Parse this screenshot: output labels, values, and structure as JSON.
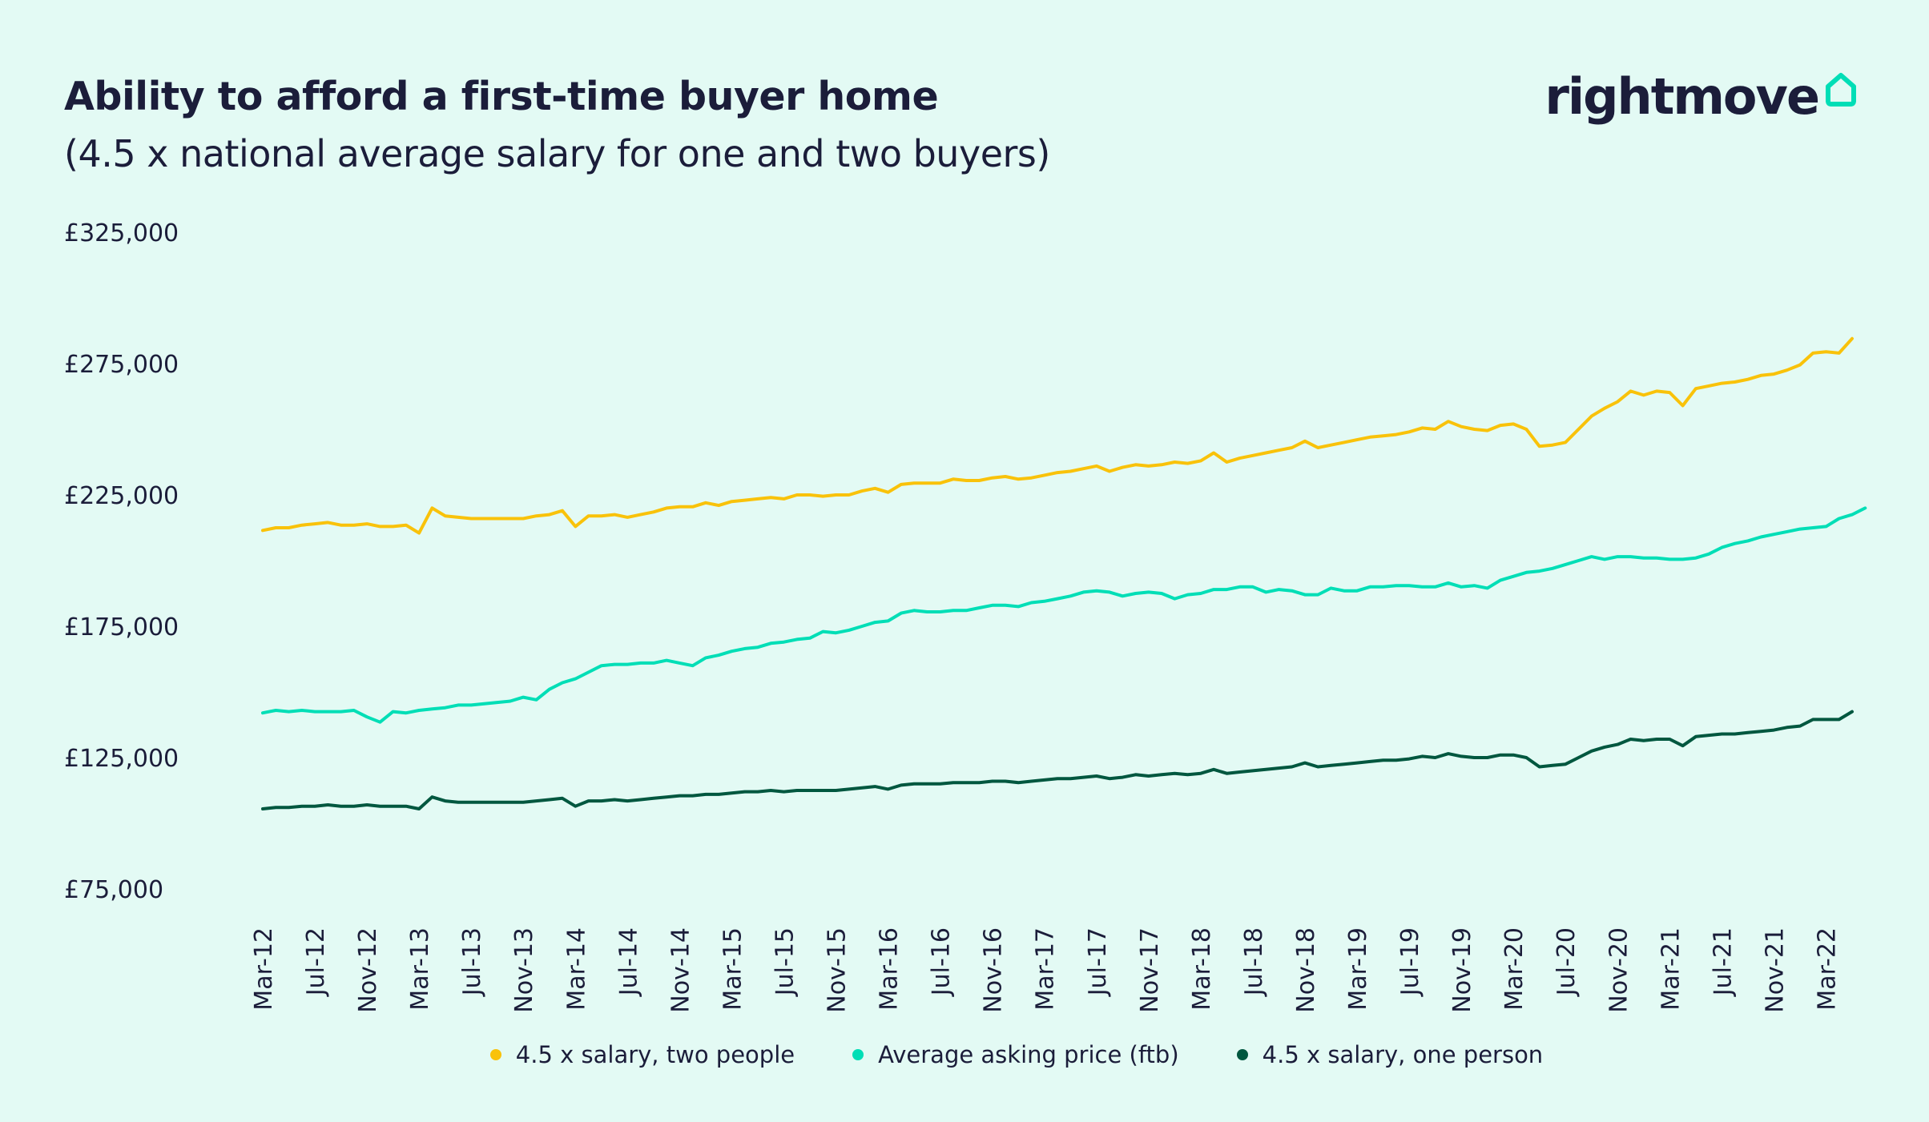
{
  "header": {
    "title": "Ability to afford a first-time buyer home",
    "subtitle": "(4.5 x national average salary for one and two buyers)"
  },
  "brand": {
    "logo_text": "rightmove",
    "logo_icon": "house-icon",
    "accent_color": "#00deb6"
  },
  "chart_data": {
    "type": "line",
    "title": "Ability to afford a first-time buyer home",
    "subtitle": "(4.5 x national average salary for one and two buyers)",
    "xlabel": "",
    "ylabel": "",
    "ylim": [
      75000,
      325000
    ],
    "yticks": [
      75000,
      125000,
      175000,
      225000,
      275000,
      325000
    ],
    "ytick_labels": [
      "£75,000",
      "£125,000",
      "£175,000",
      "£225,000",
      "£275,000",
      "£325,000"
    ],
    "grid": false,
    "legend_position": "bottom",
    "x_tick_labels": [
      "Mar-12",
      "Jul-12",
      "Nov-12",
      "Mar-13",
      "Jul-13",
      "Nov-13",
      "Mar-14",
      "Jul-14",
      "Nov-14",
      "Mar-15",
      "Jul-15",
      "Nov-15",
      "Mar-16",
      "Jul-16",
      "Nov-16",
      "Mar-17",
      "Jul-17",
      "Nov-17",
      "Mar-18",
      "Jul-18",
      "Nov-18",
      "Mar-19",
      "Jul-19",
      "Nov-19",
      "Mar-20",
      "Jul-20",
      "Nov-20",
      "Mar-21",
      "Jul-21",
      "Nov-21",
      "Mar-22"
    ],
    "x_tick_step_months": 4,
    "series": [
      {
        "name": "4.5 x salary, two people",
        "color": "#f9c20a",
        "values": [
          211500,
          212500,
          212500,
          213500,
          214000,
          214500,
          213500,
          213500,
          214000,
          213000,
          213000,
          213500,
          210500,
          220000,
          217000,
          216500,
          216000,
          216000,
          216000,
          216000,
          216000,
          217000,
          217500,
          219000,
          213000,
          217000,
          217000,
          217500,
          216500,
          217500,
          218500,
          220000,
          220500,
          220500,
          222000,
          221000,
          222500,
          223000,
          223500,
          224000,
          223500,
          225000,
          225000,
          224500,
          225000,
          225000,
          226500,
          227500,
          226000,
          229000,
          229500,
          229500,
          229500,
          231000,
          230500,
          230500,
          231500,
          232000,
          231000,
          231500,
          232500,
          233500,
          234000,
          235000,
          236000,
          234000,
          235500,
          236500,
          236000,
          236500,
          237500,
          237000,
          238000,
          241000,
          237500,
          239000,
          240000,
          241000,
          242000,
          243000,
          245500,
          243000,
          244000,
          245000,
          246000,
          247000,
          247500,
          248000,
          249000,
          250500,
          250000,
          253000,
          251000,
          250000,
          249500,
          251500,
          252000,
          250000,
          243500,
          244000,
          245000,
          250000,
          255000,
          258000,
          260500,
          264500,
          263000,
          264500,
          264000,
          259000,
          265500,
          266500,
          267500,
          268000,
          269000,
          270500,
          271000,
          272500,
          274500,
          279000,
          279500,
          279000,
          284500
        ]
      },
      {
        "name": "Average asking price (ftb)",
        "color": "#00deb6",
        "values": [
          142000,
          143000,
          142500,
          143000,
          142500,
          142500,
          142500,
          143000,
          140500,
          138500,
          142500,
          142000,
          143000,
          143500,
          144000,
          145000,
          145000,
          145500,
          146000,
          146500,
          148000,
          147000,
          151000,
          153500,
          155000,
          157500,
          160000,
          160500,
          160500,
          161000,
          161000,
          162000,
          161000,
          160000,
          163000,
          164000,
          165500,
          166500,
          167000,
          168500,
          169000,
          170000,
          170500,
          173000,
          172500,
          173500,
          175000,
          176500,
          177000,
          180000,
          181000,
          180500,
          180500,
          181000,
          181000,
          182000,
          183000,
          183000,
          182500,
          184000,
          184500,
          185500,
          186500,
          188000,
          188500,
          188000,
          186500,
          187500,
          188000,
          187500,
          185500,
          187000,
          187500,
          189000,
          189000,
          190000,
          190000,
          188000,
          189000,
          188500,
          187000,
          187000,
          189500,
          188500,
          188500,
          190000,
          190000,
          190500,
          190500,
          190000,
          190000,
          191500,
          190000,
          190500,
          189500,
          192500,
          194000,
          195500,
          196000,
          197000,
          198500,
          200000,
          201500,
          200500,
          201500,
          201500,
          201000,
          201000,
          200500,
          200500,
          201000,
          202500,
          205000,
          206500,
          207500,
          209000,
          210000,
          211000,
          212000,
          212500,
          213000,
          216000,
          217500,
          220000
        ]
      },
      {
        "name": "4.5 x salary, one person",
        "color": "#00573f",
        "values": [
          105500,
          106000,
          106000,
          106500,
          106500,
          107000,
          106500,
          106500,
          107000,
          106500,
          106500,
          106500,
          105500,
          110000,
          108500,
          108000,
          108000,
          108000,
          108000,
          108000,
          108000,
          108500,
          109000,
          109500,
          106500,
          108500,
          108500,
          109000,
          108500,
          109000,
          109500,
          110000,
          110500,
          110500,
          111000,
          111000,
          111500,
          112000,
          112000,
          112500,
          112000,
          112500,
          112500,
          112500,
          112500,
          113000,
          113500,
          114000,
          113000,
          114500,
          115000,
          115000,
          115000,
          115500,
          115500,
          115500,
          116000,
          116000,
          115500,
          116000,
          116500,
          117000,
          117000,
          117500,
          118000,
          117000,
          117500,
          118500,
          118000,
          118500,
          119000,
          118500,
          119000,
          120500,
          119000,
          119500,
          120000,
          120500,
          121000,
          121500,
          123000,
          121500,
          122000,
          122500,
          123000,
          123500,
          124000,
          124000,
          124500,
          125500,
          125000,
          126500,
          125500,
          125000,
          125000,
          126000,
          126000,
          125000,
          121500,
          122000,
          122500,
          125000,
          127500,
          129000,
          130000,
          132000,
          131500,
          132000,
          132000,
          129500,
          133000,
          133500,
          134000,
          134000,
          134500,
          135000,
          135500,
          136500,
          137000,
          139500,
          139500,
          139500,
          142500
        ]
      }
    ]
  }
}
